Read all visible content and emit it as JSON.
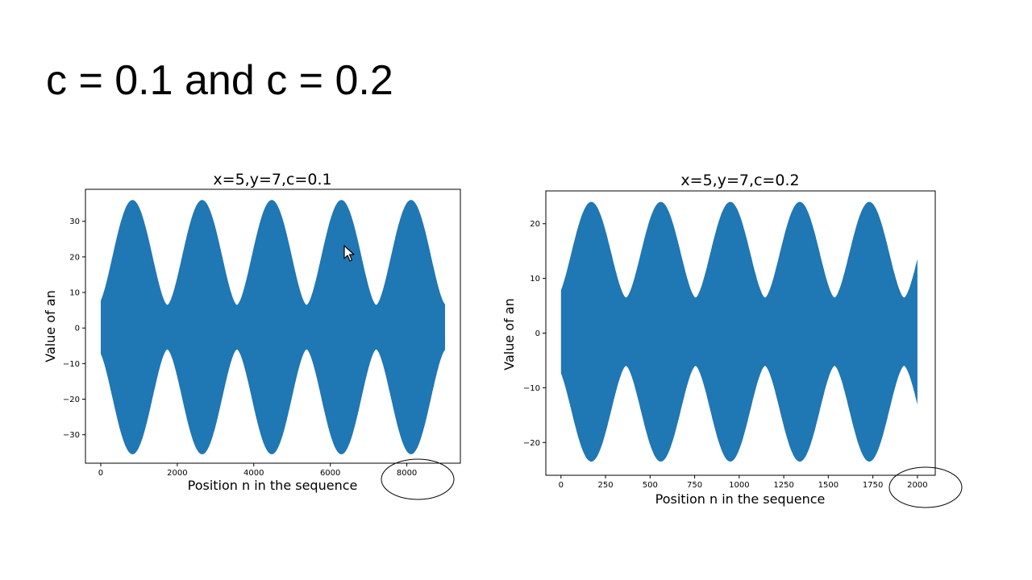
{
  "slide": {
    "title": "c = 0.1 and c = 0.2"
  },
  "colors": {
    "series": "#1f77b4",
    "axes": "#000000",
    "background": "#ffffff"
  },
  "chart_data": [
    {
      "type": "area",
      "title": "x=5,y=7,c=0.1",
      "xlabel": "Position n in the sequence",
      "ylabel": "Value of an",
      "xlim": [
        -400,
        9400
      ],
      "ylim": [
        -38,
        39
      ],
      "xticks": [
        0,
        2000,
        4000,
        6000,
        8000
      ],
      "yticks": [
        -30,
        -20,
        -10,
        0,
        10,
        20,
        30
      ],
      "annotation": "circled x tick 8000",
      "series": [
        {
          "x_range": [
            0,
            9000
          ],
          "upper_envelope": {
            "min": 6.5,
            "max": 36,
            "peaks_at": [
              830,
              2650,
              4470,
              6290,
              8110
            ]
          },
          "lower_envelope": {
            "min": -35.5,
            "max": -6,
            "troughs_at": [
              830,
              2650,
              4470,
              6290,
              8110
            ]
          }
        }
      ]
    },
    {
      "type": "area",
      "title": "x=5,y=7,c=0.2",
      "xlabel": "Position n in the sequence",
      "ylabel": "Value of an",
      "xlim": [
        -85,
        2100
      ],
      "ylim": [
        -26,
        26
      ],
      "xticks": [
        0,
        250,
        500,
        750,
        1000,
        1250,
        1500,
        1750,
        2000
      ],
      "yticks": [
        -20,
        -10,
        0,
        10,
        20
      ],
      "annotation": "circled x tick 2000",
      "series": [
        {
          "x_range": [
            0,
            2000
          ],
          "upper_envelope": {
            "min": 6.5,
            "max": 24,
            "peaks_at": [
              170,
              560,
              950,
              1340,
              1730
            ]
          },
          "lower_envelope": {
            "min": -23.5,
            "max": -6,
            "troughs_at": [
              170,
              560,
              950,
              1340,
              1730
            ]
          }
        }
      ]
    }
  ]
}
